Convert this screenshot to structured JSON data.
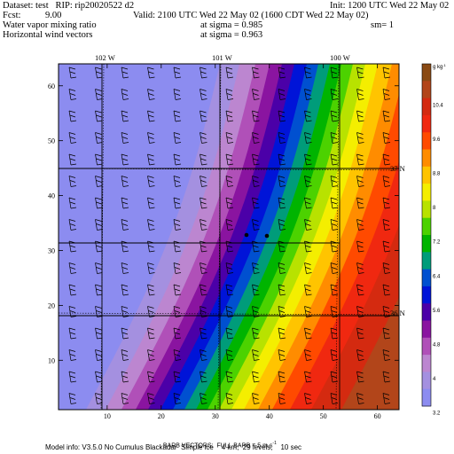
{
  "header": {
    "dataset_line": "Dataset: test   RIP: rip20020522 d2",
    "fcst_label": "Fcst:",
    "fcst_value": "9.00",
    "field_line": "Water vapor mixing ratio",
    "vector_line": "Horizontal wind vectors",
    "init_line": "Init: 1200 UTC Wed 22 May 02",
    "valid_line": "Valid: 2100 UTC Wed 22 May 02 (1600 CDT Wed 22 May 02)",
    "sigma1": "at sigma = 0.985",
    "sigma2": "at sigma = 0.963",
    "sm": "sm= 1"
  },
  "axes": {
    "x_ticks": [
      "10",
      "20",
      "30",
      "40",
      "50",
      "60"
    ],
    "y_ticks": [
      "10",
      "20",
      "30",
      "40",
      "50",
      "60"
    ],
    "longitudes": [
      "102 W",
      "101 W",
      "100 W"
    ],
    "latitudes": [
      "37 N",
      "36 N"
    ]
  },
  "colorbar": {
    "unit": "g kg",
    "unit_exp": "-1",
    "labels": [
      "10.4",
      "9.6",
      "8.8",
      "8",
      "7.2",
      "6.4",
      "5.6",
      "4.8",
      "4",
      "3.2"
    ],
    "colors": [
      "#8a4a14",
      "#b2451a",
      "#d42a10",
      "#f02810",
      "#ff4a00",
      "#ff8c00",
      "#ffc400",
      "#f4ee00",
      "#b8e200",
      "#4cd200",
      "#00b400",
      "#009c7a",
      "#0050d0",
      "#0014d8",
      "#4b00a8",
      "#8a14a0",
      "#b050b8",
      "#bc86d0",
      "#a490e0",
      "#8c8cf0"
    ]
  },
  "footer": {
    "barb_line": "BARB VECTORS:  FULL BARB = 5 m s",
    "barb_exp": "-1",
    "model_line": "Model info: V3.5.0 No Cumulus Blackadar  Simple ice    4 km,  29 levels,    10 sec"
  }
}
